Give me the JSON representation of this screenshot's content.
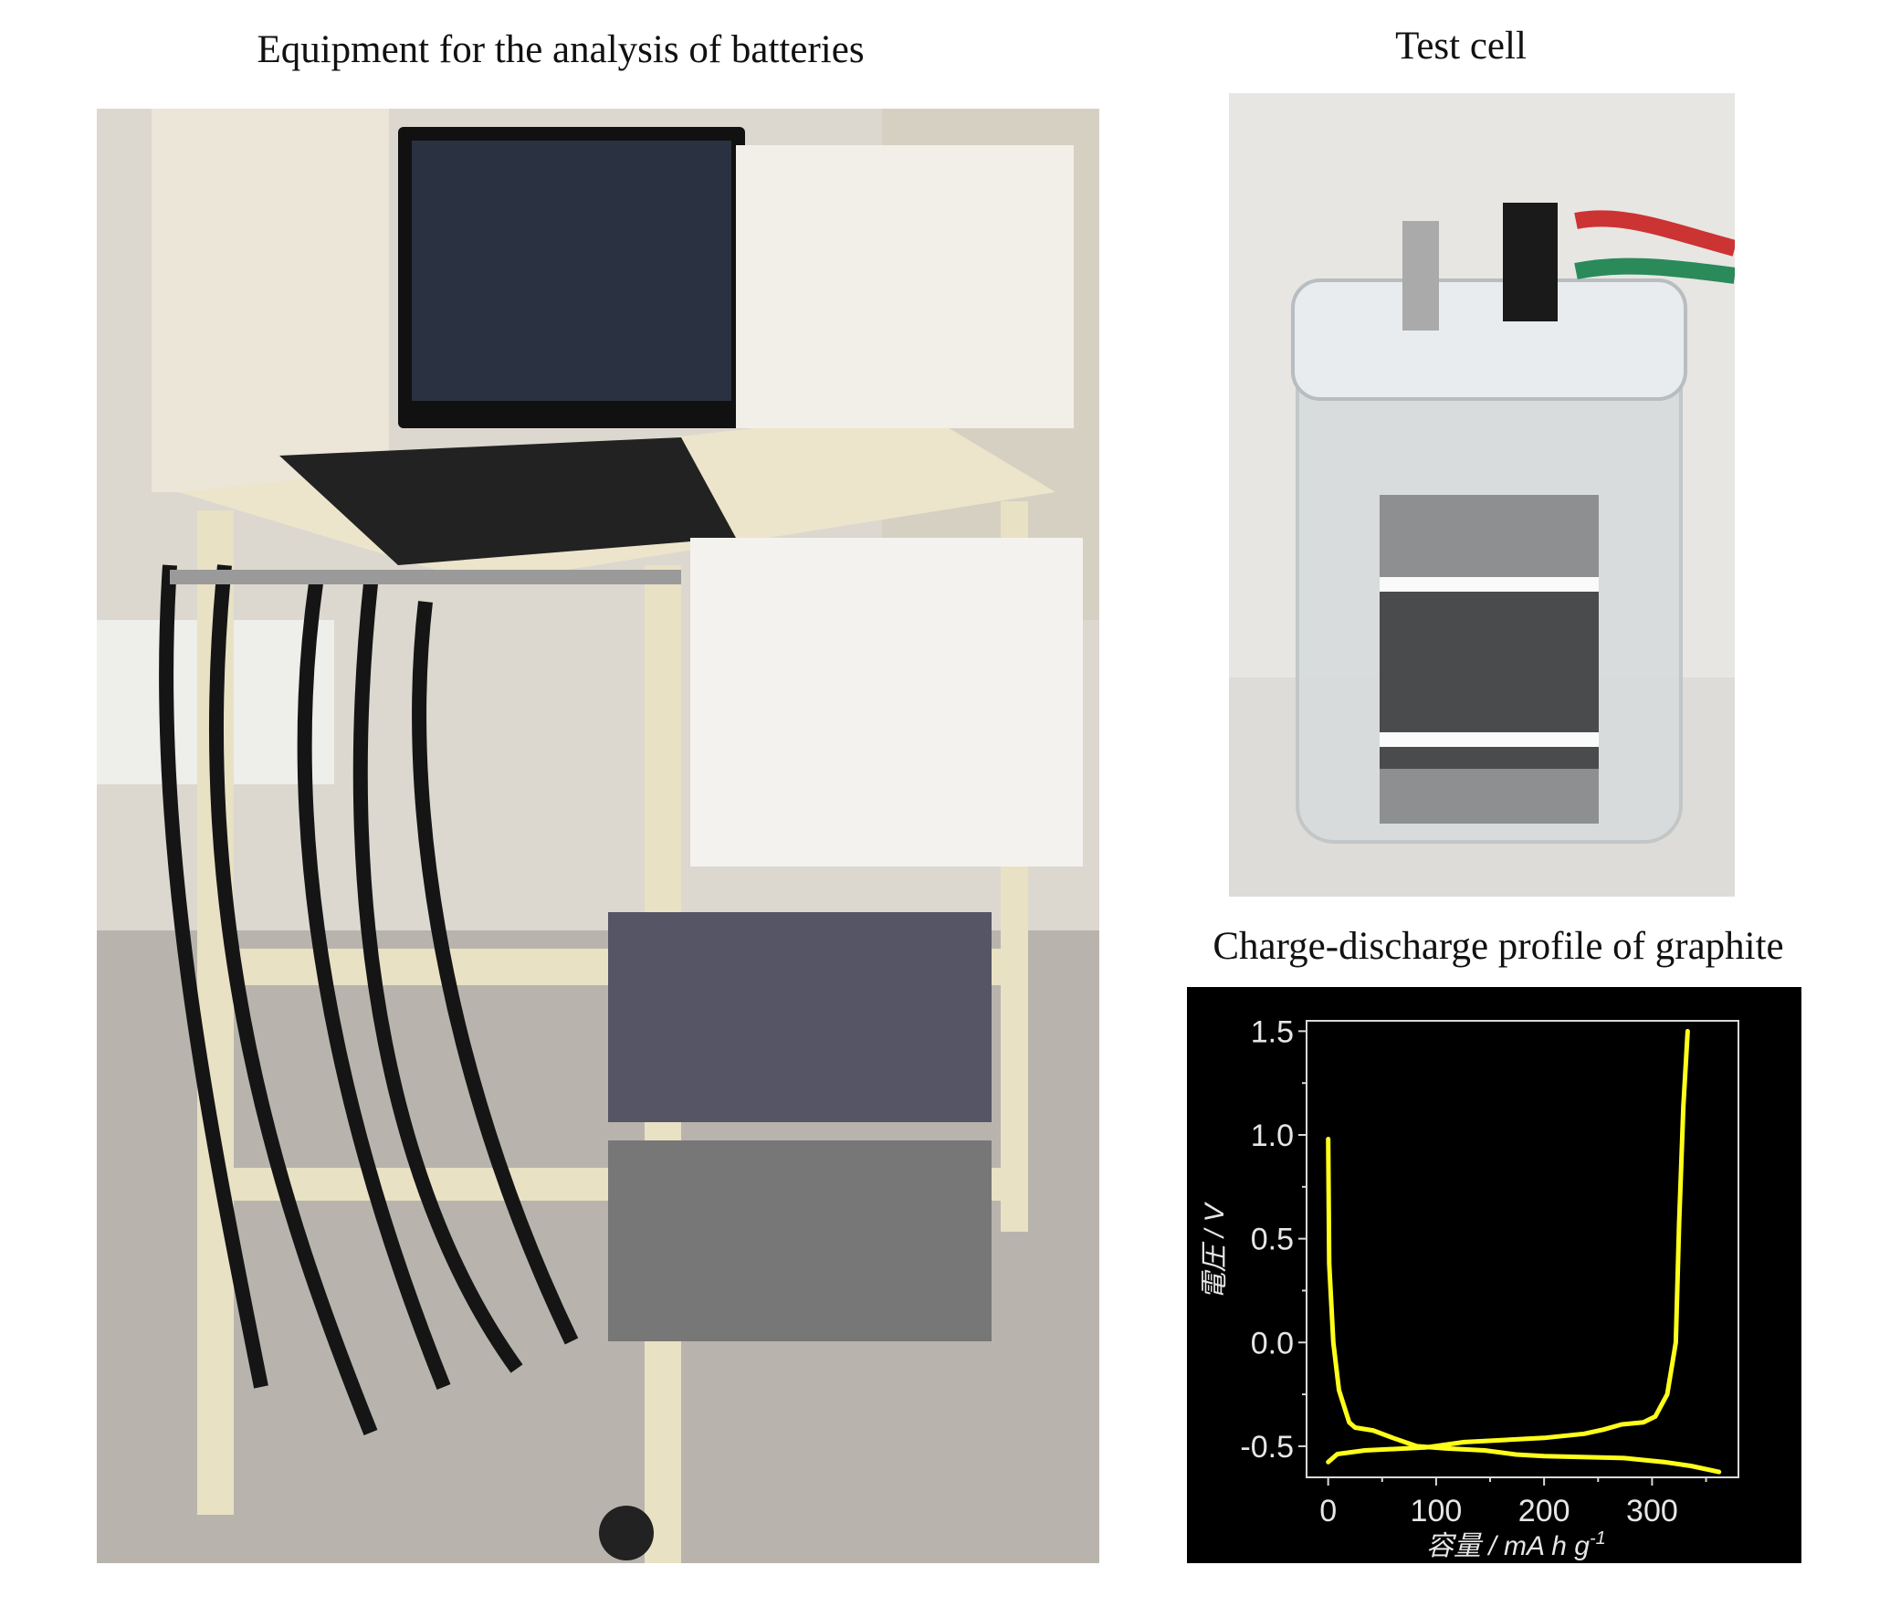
{
  "panels": {
    "equipment_title": "Equipment for the analysis of batteries",
    "cell_title": "Test cell",
    "chart_title": "Charge-discharge profile of graphite"
  },
  "photos": {
    "equipment": {
      "subject": "battery-testing-cart-with-laptop-and-channels"
    },
    "cell": {
      "subject": "transparent-test-cell-with-electrode-leads"
    }
  },
  "chart_data": {
    "type": "line",
    "title": "Charge-discharge profile of graphite",
    "xlabel": "容量 / mA h g",
    "xlabel_sup": "-1",
    "ylabel": "電圧 / V",
    "xlim": [
      -20,
      380
    ],
    "ylim": [
      -0.65,
      1.55
    ],
    "xticks": [
      0,
      100,
      200,
      300
    ],
    "yticks": [
      -0.5,
      0.0,
      0.5,
      1.0,
      1.5
    ],
    "ytick_labels": [
      "-0.5",
      "0.0",
      "0.5",
      "1.0",
      "1.5"
    ],
    "background": "#000000",
    "axis_color": "#d9d9d9",
    "line_color": "#ffff1a",
    "grid": false,
    "series": [
      {
        "x": [
          0,
          1,
          4.8,
          10,
          19.5,
          25,
          41.6,
          60,
          82,
          108,
          145,
          174,
          200,
          274,
          311,
          336,
          362
        ],
        "y": [
          0.98,
          0.38,
          0.0,
          -0.23,
          -0.385,
          -0.41,
          -0.424,
          -0.46,
          -0.5,
          -0.51,
          -0.52,
          -0.54,
          -0.548,
          -0.557,
          -0.576,
          -0.595,
          -0.624
        ]
      },
      {
        "x": [
          0,
          8.5,
          34,
          90,
          126,
          163,
          200,
          237,
          255,
          272,
          292,
          303,
          314,
          322,
          325,
          329,
          333
        ],
        "y": [
          -0.576,
          -0.538,
          -0.52,
          -0.506,
          -0.48,
          -0.47,
          -0.46,
          -0.44,
          -0.42,
          -0.395,
          -0.385,
          -0.357,
          -0.25,
          0.0,
          0.57,
          1.14,
          1.5
        ]
      }
    ]
  }
}
